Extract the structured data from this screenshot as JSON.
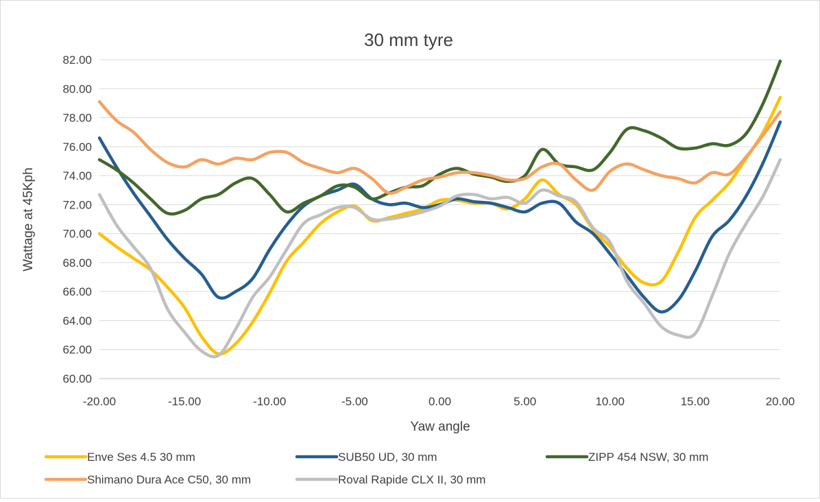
{
  "chart_data": {
    "type": "line",
    "title": "30 mm tyre",
    "xlabel": "Yaw angle",
    "ylabel": "Wattage at 45Kph",
    "xlim": [
      -20,
      20
    ],
    "ylim": [
      60,
      82
    ],
    "x_ticks": [
      "-20.00",
      "-15.00",
      "-10.00",
      "-5.00",
      "0.00",
      "5.00",
      "10.00",
      "15.00",
      "20.00"
    ],
    "y_ticks": [
      "60.00",
      "62.00",
      "64.00",
      "66.00",
      "68.00",
      "70.00",
      "72.00",
      "74.00",
      "76.00",
      "78.00",
      "80.00",
      "82.00"
    ],
    "grid": "horizontal",
    "legend_position": "bottom",
    "x": [
      -20,
      -19,
      -18,
      -17,
      -16,
      -15,
      -14,
      -13,
      -12,
      -11,
      -10,
      -9,
      -8,
      -7,
      -6,
      -5,
      -4,
      -3,
      -2,
      -1,
      0,
      1,
      2,
      3,
      4,
      5,
      6,
      7,
      8,
      9,
      10,
      11,
      12,
      13,
      14,
      15,
      16,
      17,
      18,
      19,
      20
    ],
    "series": [
      {
        "name": "Enve Ses 4.5 30 mm",
        "color": "#FFC000",
        "values": [
          70.0,
          69.1,
          68.3,
          67.5,
          66.3,
          64.9,
          62.9,
          61.7,
          62.4,
          63.9,
          65.9,
          68.1,
          69.4,
          70.7,
          71.5,
          71.9,
          70.9,
          71.1,
          71.4,
          71.7,
          72.3,
          72.3,
          72.1,
          72.1,
          71.7,
          72.4,
          73.7,
          72.7,
          72.0,
          70.3,
          69.1,
          67.6,
          66.6,
          66.7,
          68.7,
          71.1,
          72.3,
          73.5,
          75.2,
          77.0,
          79.4
        ]
      },
      {
        "name": "SUB50 UD, 30 mm",
        "color": "#255E91",
        "values": [
          76.6,
          74.6,
          72.8,
          71.2,
          69.6,
          68.3,
          67.2,
          65.6,
          66.0,
          66.9,
          68.9,
          70.6,
          71.9,
          72.6,
          73.0,
          73.4,
          72.4,
          72.0,
          72.1,
          71.8,
          72.0,
          72.4,
          72.2,
          72.1,
          71.8,
          71.5,
          72.1,
          72.1,
          70.8,
          70.0,
          68.6,
          67.1,
          65.6,
          64.6,
          65.4,
          67.4,
          69.8,
          70.9,
          72.6,
          74.9,
          77.7
        ]
      },
      {
        "name": "ZIPP 454 NSW, 30 mm",
        "color": "#43682B",
        "values": [
          75.1,
          74.4,
          73.5,
          72.4,
          71.4,
          71.6,
          72.4,
          72.7,
          73.5,
          73.8,
          72.7,
          71.5,
          72.1,
          72.6,
          73.3,
          73.2,
          72.4,
          72.8,
          73.2,
          73.3,
          74.1,
          74.5,
          74.1,
          73.9,
          73.6,
          74.0,
          75.8,
          74.8,
          74.6,
          74.4,
          75.6,
          77.2,
          77.1,
          76.6,
          75.9,
          75.9,
          76.2,
          76.1,
          76.9,
          79.0,
          81.9
        ]
      },
      {
        "name": "Shimano Dura Ace C50, 30 mm",
        "color": "#F4A261",
        "values": [
          79.1,
          77.8,
          77.0,
          75.8,
          74.9,
          74.6,
          75.1,
          74.8,
          75.2,
          75.1,
          75.6,
          75.6,
          74.9,
          74.5,
          74.2,
          74.5,
          73.8,
          72.8,
          73.2,
          73.7,
          73.9,
          74.2,
          74.2,
          74.0,
          73.7,
          73.8,
          74.6,
          74.8,
          73.7,
          73.0,
          74.3,
          74.8,
          74.4,
          74.0,
          73.8,
          73.5,
          74.2,
          74.1,
          75.3,
          76.8,
          78.4
        ]
      },
      {
        "name": "Roval Rapide CLX II, 30 mm",
        "color": "#BFBFBF",
        "values": [
          72.7,
          70.6,
          69.1,
          67.6,
          64.8,
          63.2,
          61.9,
          61.6,
          63.4,
          65.6,
          67.0,
          68.9,
          70.7,
          71.3,
          71.8,
          71.8,
          71.0,
          71.0,
          71.2,
          71.5,
          71.9,
          72.6,
          72.7,
          72.4,
          72.5,
          72.1,
          73.0,
          72.6,
          72.2,
          70.4,
          69.4,
          66.7,
          65.2,
          63.6,
          63.0,
          63.1,
          65.7,
          68.6,
          70.7,
          72.6,
          75.1
        ]
      }
    ]
  }
}
